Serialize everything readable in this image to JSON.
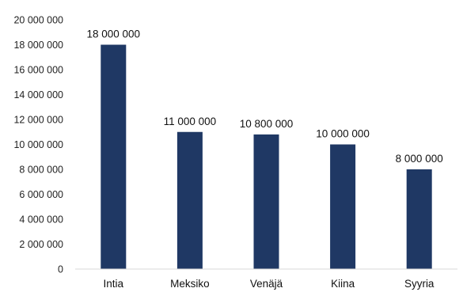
{
  "chart_data": {
    "type": "bar",
    "categories": [
      "Intia",
      "Meksiko",
      "Venäjä",
      "Kiina",
      "Syyria"
    ],
    "values": [
      18000000,
      11000000,
      10800000,
      10000000,
      8000000
    ],
    "data_labels": [
      "18 000 000",
      "11 000 000",
      "10 800 000",
      "10 000 000",
      "8 000 000"
    ],
    "ylim": [
      0,
      20000000
    ],
    "yticks": [
      0,
      2000000,
      4000000,
      6000000,
      8000000,
      10000000,
      12000000,
      14000000,
      16000000,
      18000000,
      20000000
    ],
    "ytick_labels": [
      "0",
      "2 000 000",
      "4 000 000",
      "6 000 000",
      "8 000 000",
      "10 000 000",
      "12 000 000",
      "14 000 000",
      "16 000 000",
      "18 000 000",
      "20 000 000"
    ],
    "grid": false,
    "legend": "none",
    "title": "",
    "xlabel": "",
    "ylabel": "",
    "bar_color": "#1f3864"
  }
}
